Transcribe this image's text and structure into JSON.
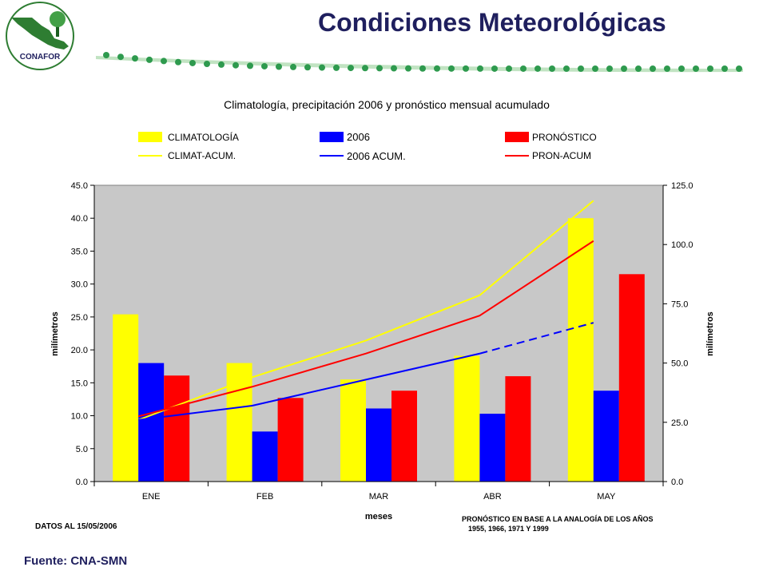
{
  "header": {
    "title": "Condiciones Meteorológicas",
    "logo_text": "CONAFOR"
  },
  "colors": {
    "title": "#1f1f5e",
    "dots": "#2e9a4e",
    "climatologia": "#ffff00",
    "anio2006": "#0000ff",
    "pronostico": "#ff0000",
    "plot_bg": "#c8c8c8"
  },
  "chart_data": {
    "type": "bar",
    "title": "Climatología, precipitación 2006 y pronóstico mensual acumulado",
    "categories": [
      "ENE",
      "FEB",
      "MAR",
      "ABR",
      "MAY"
    ],
    "series": [
      {
        "name": "CLIMATOLOGÍA",
        "kind": "bar",
        "color": "#ffff00",
        "values": [
          25.4,
          18.0,
          15.5,
          19.1,
          40.0
        ]
      },
      {
        "name": "2006",
        "kind": "bar",
        "color": "#0000ff",
        "values": [
          18.0,
          7.6,
          11.1,
          10.3,
          13.8
        ]
      },
      {
        "name": "PRONÓSTICO",
        "kind": "bar",
        "color": "#ff0000",
        "values": [
          16.1,
          12.7,
          13.8,
          16.0,
          31.5
        ]
      },
      {
        "name": "CLIMAT-ACUM.",
        "kind": "line",
        "axis": "right",
        "color": "#ffff00",
        "values": [
          26.0,
          44.0,
          59.5,
          78.6,
          118.5
        ]
      },
      {
        "name": "2006 ACUM.",
        "kind": "line",
        "axis": "right",
        "color": "#0000ff",
        "values": [
          26.0,
          32.0,
          43.0,
          54.0,
          67.0
        ],
        "dashed_from_index": 3
      },
      {
        "name": "PRON-ACUM",
        "kind": "line",
        "axis": "right",
        "color": "#ff0000",
        "values": [
          27.5,
          40.0,
          54.0,
          70.0,
          101.5
        ]
      }
    ],
    "y_left": {
      "label": "milímetros",
      "min": 0,
      "max": 45,
      "step": 5,
      "ticks": [
        "0.0",
        "5.0",
        "10.0",
        "15.0",
        "20.0",
        "25.0",
        "30.0",
        "35.0",
        "40.0",
        "45.0"
      ]
    },
    "y_right": {
      "label": "milímetros",
      "min": 0,
      "max": 125,
      "step": 25,
      "ticks": [
        "0.0",
        "25.0",
        "50.0",
        "75.0",
        "100.0",
        "125.0"
      ]
    },
    "xlabel": "meses",
    "legend_position": "top",
    "grid": false
  },
  "notes": {
    "data_date": "DATOS AL 15/05/2006",
    "forecast_line1": "PRONÓSTICO EN BASE A LA ANALOGÍA DE LOS AÑOS",
    "forecast_line2": "1955, 1966, 1971  Y 1999"
  },
  "footer": {
    "source": "Fuente: CNA-SMN"
  }
}
